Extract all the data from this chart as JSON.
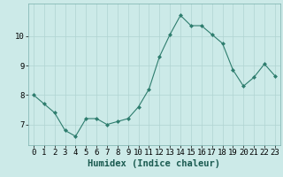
{
  "x": [
    0,
    1,
    2,
    3,
    4,
    5,
    6,
    7,
    8,
    9,
    10,
    11,
    12,
    13,
    14,
    15,
    16,
    17,
    18,
    19,
    20,
    21,
    22,
    23
  ],
  "y": [
    8.0,
    7.7,
    7.4,
    6.8,
    6.6,
    7.2,
    7.2,
    7.0,
    7.1,
    7.2,
    7.6,
    8.2,
    9.3,
    10.05,
    10.7,
    10.35,
    10.35,
    10.05,
    9.75,
    8.85,
    8.3,
    8.6,
    9.05,
    8.65
  ],
  "line_color": "#2e7d6e",
  "marker": "D",
  "marker_size": 2.0,
  "bg_color": "#cceae8",
  "grid_color": "#b0d4d2",
  "xlabel": "Humidex (Indice chaleur)",
  "ylim": [
    6.3,
    11.1
  ],
  "xlim": [
    -0.5,
    23.5
  ],
  "yticks": [
    7,
    8,
    9,
    10
  ],
  "xticks": [
    0,
    1,
    2,
    3,
    4,
    5,
    6,
    7,
    8,
    9,
    10,
    11,
    12,
    13,
    14,
    15,
    16,
    17,
    18,
    19,
    20,
    21,
    22,
    23
  ],
  "xlabel_fontsize": 7.5,
  "tick_fontsize": 6.5
}
